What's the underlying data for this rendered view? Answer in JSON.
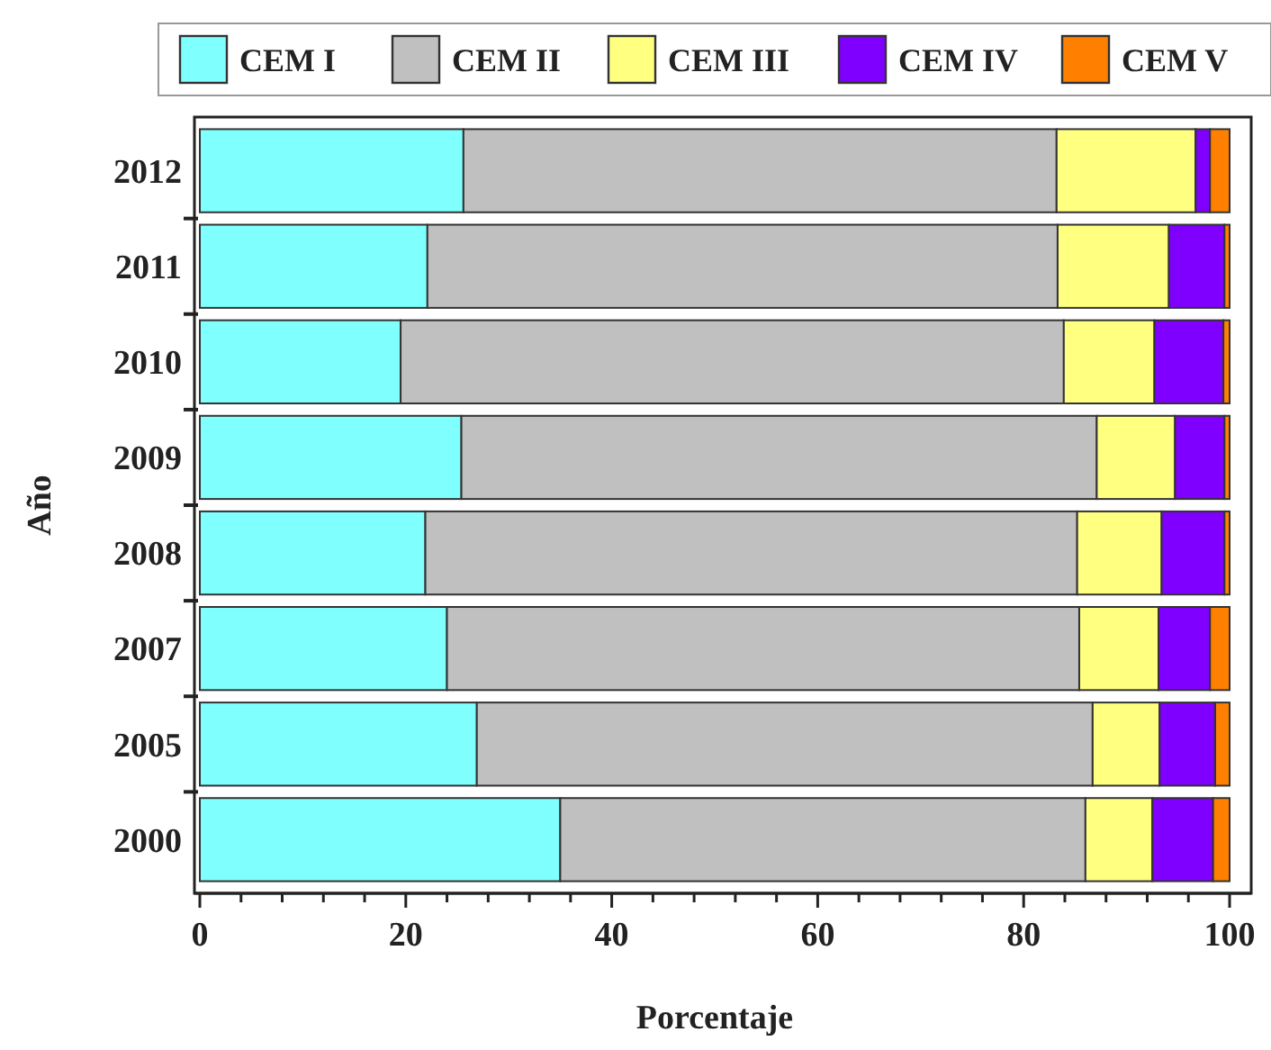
{
  "chart_data": {
    "type": "bar",
    "orientation": "horizontal",
    "stacked": true,
    "xlabel": "Porcentaje",
    "ylabel": "Año",
    "categories": [
      "2012",
      "2011",
      "2010",
      "2009",
      "2008",
      "2007",
      "2005",
      "2000"
    ],
    "series": [
      {
        "name": "CEM I",
        "color": "#80ffff",
        "values": [
          25.6,
          22.1,
          19.5,
          25.4,
          21.9,
          24.0,
          26.9,
          35.0
        ]
      },
      {
        "name": "CEM II",
        "color": "#c0c0c0",
        "values": [
          57.6,
          61.2,
          64.4,
          61.7,
          63.3,
          61.4,
          59.8,
          51.0
        ]
      },
      {
        "name": "CEM III",
        "color": "#ffff80",
        "values": [
          13.5,
          10.8,
          8.8,
          7.6,
          8.2,
          7.7,
          6.5,
          6.5
        ]
      },
      {
        "name": "CEM IV",
        "color": "#8000ff",
        "values": [
          1.4,
          5.4,
          6.7,
          4.8,
          6.1,
          5.0,
          5.4,
          5.9
        ]
      },
      {
        "name": "CEM V",
        "color": "#ff8000",
        "values": [
          1.9,
          0.5,
          0.6,
          0.5,
          0.5,
          1.9,
          1.4,
          1.6
        ]
      }
    ],
    "xlim": [
      0,
      100
    ],
    "xticks": [
      0,
      {
        "value": 4,
        "label": null
      },
      {
        "value": 8,
        "label": null
      },
      {
        "value": 12,
        "label": null
      },
      {
        "value": 16,
        "label": null
      },
      20,
      {
        "value": 24,
        "label": null
      },
      {
        "value": 28,
        "label": null
      },
      {
        "value": 32,
        "label": null
      },
      {
        "value": 36,
        "label": null
      },
      40,
      {
        "value": 44,
        "label": null
      },
      {
        "value": 48,
        "label": null
      },
      {
        "value": 52,
        "label": null
      },
      {
        "value": 56,
        "label": null
      },
      60,
      {
        "value": 64,
        "label": null
      },
      {
        "value": 68,
        "label": null
      },
      {
        "value": 72,
        "label": null
      },
      {
        "value": 76,
        "label": null
      },
      80,
      {
        "value": 84,
        "label": null
      },
      {
        "value": 88,
        "label": null
      },
      {
        "value": 92,
        "label": null
      },
      {
        "value": 96,
        "label": null
      },
      100
    ],
    "legend": "top",
    "grid": false
  }
}
